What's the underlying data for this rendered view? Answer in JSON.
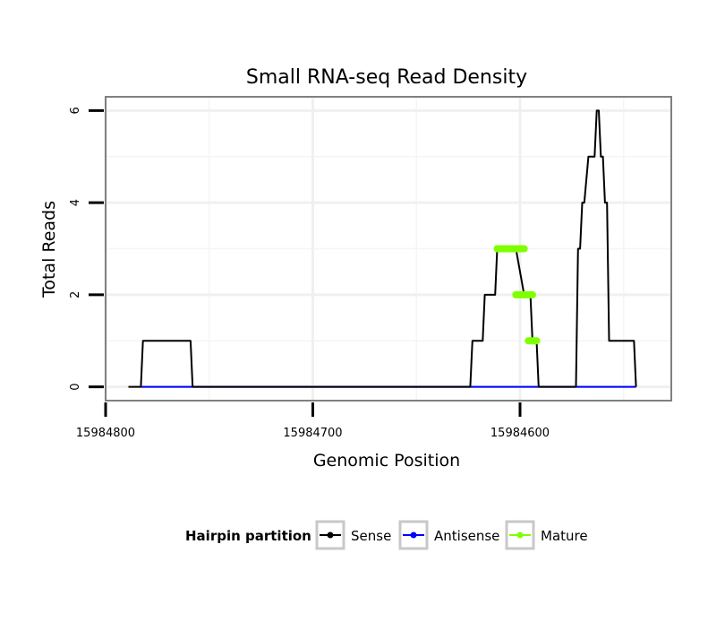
{
  "chart_data": {
    "type": "line",
    "title": "Small RNA-seq Read Density",
    "xlabel": "Genomic Position",
    "ylabel": "Total Reads",
    "x_reversed": true,
    "xlim": [
      15984800,
      15984527
    ],
    "ylim": [
      -0.3,
      6.3
    ],
    "x_ticks": [
      {
        "value": 15984800,
        "label": "15984800"
      },
      {
        "value": 15984700,
        "label": "15984700"
      },
      {
        "value": 15984600,
        "label": "15984600"
      }
    ],
    "y_ticks": [
      {
        "value": 0,
        "label": "0"
      },
      {
        "value": 2,
        "label": "2"
      },
      {
        "value": 4,
        "label": "4"
      },
      {
        "value": 6,
        "label": "6"
      }
    ],
    "grid": true,
    "legend": {
      "title": "Hairpin partition",
      "position": "bottom",
      "entries": [
        {
          "name": "Sense",
          "color": "#000000"
        },
        {
          "name": "Antisense",
          "color": "#0000ff"
        },
        {
          "name": "Mature",
          "color": "#7fff00"
        }
      ]
    },
    "series": [
      {
        "name": "Sense",
        "color": "#000000",
        "style": "line",
        "x": [
          15984789,
          15984783,
          15984782,
          15984759,
          15984758,
          15984624,
          15984623,
          15984618,
          15984617,
          15984612,
          15984611,
          15984602,
          15984598,
          15984597,
          15984595,
          15984594,
          15984592,
          15984591,
          15984587,
          15984587,
          15984586,
          15984585,
          15984584,
          15984573,
          15984572,
          15984571,
          15984570,
          15984569,
          15984567,
          15984566,
          15984565,
          15984564,
          15984563,
          15984562,
          15984561,
          15984560,
          15984559,
          15984558,
          15984557,
          15984554,
          15984553,
          15984545,
          15984544
        ],
        "y": [
          0,
          0,
          1,
          1,
          0,
          0,
          1,
          1,
          2,
          2,
          3,
          3,
          2,
          2,
          2,
          1,
          1,
          0,
          0,
          0,
          0,
          0,
          0,
          0,
          3,
          3,
          4,
          4,
          5,
          5,
          5,
          5,
          6,
          6,
          5,
          5,
          4,
          4,
          1,
          1,
          1,
          1,
          0
        ]
      },
      {
        "name": "Antisense",
        "color": "#0000ff",
        "style": "line",
        "x": [
          15984783,
          15984544
        ],
        "y": [
          0,
          0
        ]
      },
      {
        "name": "Mature",
        "color": "#7fff00",
        "style": "points",
        "x": [
          15984611,
          15984598,
          15984597,
          15984594,
          15984595,
          15984592
        ],
        "y": [
          3,
          3,
          2,
          2,
          1,
          1
        ],
        "segments": [
          {
            "x": [
              15984611,
              15984598
            ],
            "y": 3
          },
          {
            "x": [
              15984602,
              15984594
            ],
            "y": 2
          },
          {
            "x": [
              15984596,
              15984592
            ],
            "y": 1
          }
        ]
      }
    ]
  }
}
